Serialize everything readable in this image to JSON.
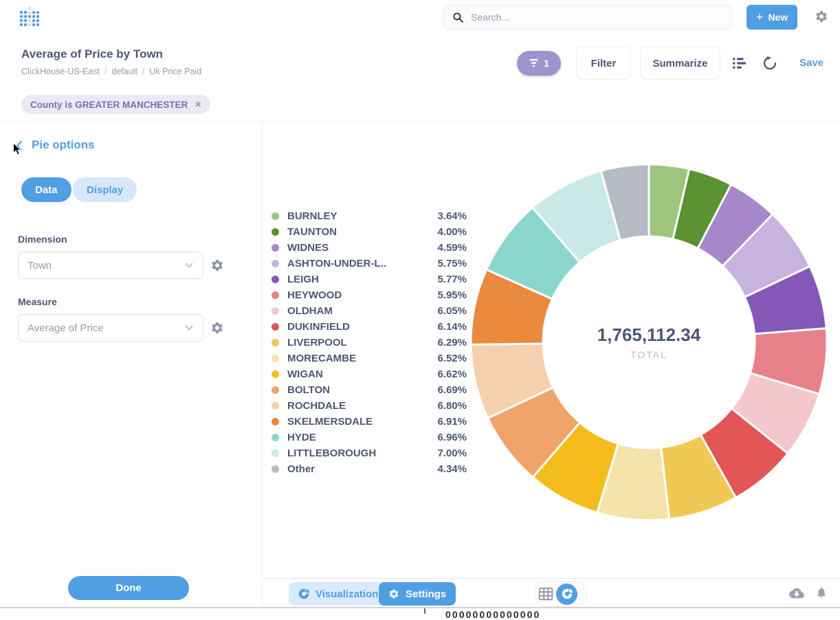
{
  "header": {
    "search_placeholder": "Search...",
    "new_button_plus": "+",
    "new_button_label": "New"
  },
  "question": {
    "title": "Average of Price by Town",
    "breadcrumb": [
      "ClickHouse-US-East",
      "default",
      "Uk Price Paid"
    ],
    "breadcrumb_separator": "/",
    "filter_count": "1",
    "filter_button_label": "Filter",
    "summarize_button_label": "Summarize",
    "save_label": "Save"
  },
  "filters": {
    "chip_label": "County is GREATER MANCHESTER",
    "chip_close": "✕"
  },
  "sidebar": {
    "title": "Pie options",
    "tabs": [
      {
        "label": "Data",
        "active": true
      },
      {
        "label": "Display",
        "active": false
      }
    ],
    "dimension": {
      "label": "Dimension",
      "value": "Town"
    },
    "measure": {
      "label": "Measure",
      "value": "Average of Price"
    },
    "done_label": "Done"
  },
  "chart_data": {
    "type": "pie",
    "title": "Average of Price by Town",
    "donut": true,
    "legend_position": "left",
    "total_value": "1,765,112.34",
    "total_label": "TOTAL",
    "slices": [
      {
        "label": "BURNLEY",
        "percent": 3.64,
        "color": "#9dc57c"
      },
      {
        "label": "TAUNTON",
        "percent": 4.0,
        "color": "#5b9232"
      },
      {
        "label": "WIDNES",
        "percent": 4.59,
        "color": "#a687ca"
      },
      {
        "label": "ASHTON-UNDER-L..",
        "percent": 5.75,
        "color": "#c7b3de"
      },
      {
        "label": "LEIGH",
        "percent": 5.77,
        "color": "#8457b8"
      },
      {
        "label": "HEYWOOD",
        "percent": 5.95,
        "color": "#e8808a"
      },
      {
        "label": "OLDHAM",
        "percent": 6.05,
        "color": "#f4c7cc"
      },
      {
        "label": "DUKINFIELD",
        "percent": 6.14,
        "color": "#e25656"
      },
      {
        "label": "LIVERPOOL",
        "percent": 6.29,
        "color": "#f0c955"
      },
      {
        "label": "MORECAMBE",
        "percent": 6.52,
        "color": "#f6e3a9"
      },
      {
        "label": "WIGAN",
        "percent": 6.62,
        "color": "#f4bd1b"
      },
      {
        "label": "BOLTON",
        "percent": 6.69,
        "color": "#f0a36b"
      },
      {
        "label": "ROCHDALE",
        "percent": 6.8,
        "color": "#f6cfae"
      },
      {
        "label": "SKELMERSDALE",
        "percent": 6.91,
        "color": "#e98a3f"
      },
      {
        "label": "HYDE",
        "percent": 6.96,
        "color": "#8ad6cc"
      },
      {
        "label": "LITTLEBOROUGH",
        "percent": 7.0,
        "color": "#c8e9e6"
      },
      {
        "label": "Other",
        "percent": 4.34,
        "color": "#b6bac3"
      }
    ]
  },
  "footer": {
    "visualization_label": "Visualization",
    "settings_label": "Settings"
  },
  "clipped_bottom_text": "00000000000000",
  "colors": {
    "brand": "#509EE3",
    "text_dark": "#4C5773",
    "text_gray": "#949AAB",
    "filter_purple": "#7172AD"
  }
}
